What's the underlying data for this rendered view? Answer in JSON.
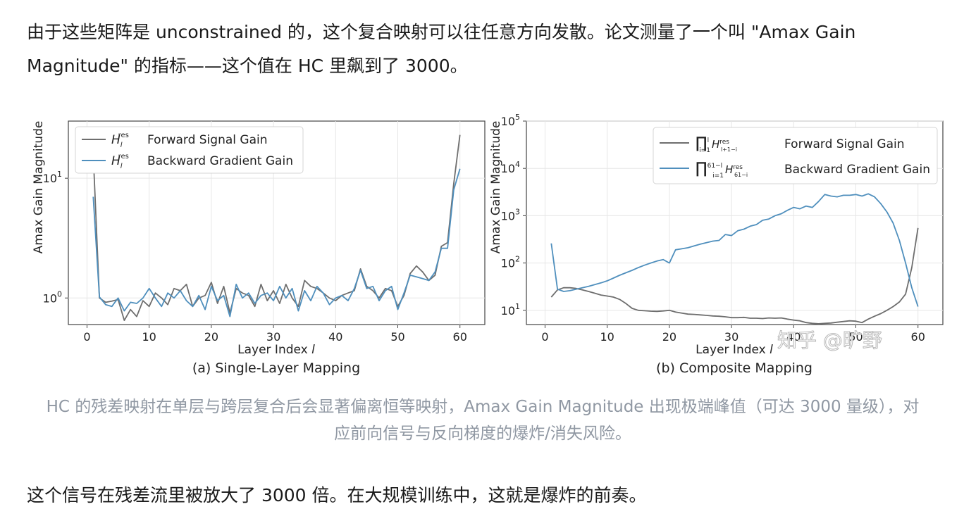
{
  "paragraphs": {
    "p1": "由于这些矩阵是 unconstrained 的，这个复合映射可以往任意方向发散。论文测量了一个叫 \"Amax Gain Magnitude\" 的指标——这个值在 HC 里飙到了 3000。",
    "caption": "HC 的残差映射在单层与跨层复合后会显著偏离恒等映射，Amax Gain Magnitude 出现极端峰值（可达 3000 量级），对应前向信号与反向梯度的爆炸/消失风险。",
    "p3": "这个信号在残差流里被放大了 3000 倍。在大规模训练中，这就是爆炸的前奏。"
  },
  "watermark": "知乎 @旷野",
  "colors": {
    "forward": "#6e6e6e",
    "backward": "#4f8fbd"
  },
  "chart_data": [
    {
      "type": "line",
      "title": "(a) Single-Layer Mapping",
      "xlabel": "Layer Index l",
      "ylabel": "Amax Gain Magnitude",
      "yscale": "log",
      "xlim": [
        -3,
        64
      ],
      "ylim": [
        0.6,
        30
      ],
      "xticks": [
        0,
        10,
        20,
        30,
        40,
        50,
        60
      ],
      "yticks": [
        {
          "value": 1,
          "base": "10",
          "exp": "0"
        },
        {
          "value": 10,
          "base": "10",
          "exp": "1"
        }
      ],
      "legend": "top-left",
      "series": [
        {
          "name": "Forward Signal Gain",
          "symbol": "H",
          "sub": "l",
          "sup": "res",
          "x": [
            1,
            2,
            3,
            4,
            5,
            6,
            7,
            8,
            9,
            10,
            11,
            12,
            13,
            14,
            15,
            16,
            17,
            18,
            19,
            20,
            21,
            22,
            23,
            24,
            25,
            26,
            27,
            28,
            29,
            30,
            31,
            32,
            33,
            34,
            35,
            36,
            37,
            38,
            39,
            40,
            41,
            42,
            43,
            44,
            45,
            46,
            47,
            48,
            49,
            50,
            51,
            52,
            53,
            54,
            55,
            56,
            57,
            58,
            59,
            60
          ],
          "values": [
            16,
            1.0,
            0.92,
            0.94,
            0.97,
            0.65,
            0.8,
            0.7,
            0.95,
            0.85,
            1.1,
            1.0,
            0.88,
            1.2,
            1.15,
            1.3,
            0.85,
            1.0,
            1.05,
            1.35,
            0.9,
            1.25,
            0.75,
            1.2,
            1.1,
            1.05,
            0.85,
            1.3,
            0.95,
            1.15,
            0.9,
            1.3,
            1.0,
            0.85,
            1.4,
            1.25,
            1.2,
            1.1,
            1.0,
            0.95,
            1.05,
            1.1,
            1.15,
            1.75,
            1.25,
            1.15,
            1.0,
            1.2,
            1.15,
            0.85,
            1.05,
            1.6,
            1.85,
            1.65,
            1.4,
            1.55,
            2.7,
            2.9,
            9,
            23
          ]
        },
        {
          "name": "Backward Gradient Gain",
          "symbol": "H",
          "sub": "l",
          "sup": "res",
          "x": [
            1,
            2,
            3,
            4,
            5,
            6,
            7,
            8,
            9,
            10,
            11,
            12,
            13,
            14,
            15,
            16,
            17,
            18,
            19,
            20,
            21,
            22,
            23,
            24,
            25,
            26,
            27,
            28,
            29,
            30,
            31,
            32,
            33,
            34,
            35,
            36,
            37,
            38,
            39,
            40,
            41,
            42,
            43,
            44,
            45,
            46,
            47,
            48,
            49,
            50,
            51,
            52,
            53,
            54,
            55,
            56,
            57,
            58,
            59,
            60
          ],
          "values": [
            7,
            1.02,
            0.88,
            0.85,
            1.0,
            0.78,
            0.92,
            0.9,
            1.0,
            1.2,
            1.0,
            0.85,
            1.1,
            1.0,
            1.15,
            0.95,
            0.85,
            1.05,
            0.8,
            1.25,
            0.95,
            1.05,
            0.7,
            1.3,
            1.0,
            1.1,
            0.9,
            1.05,
            1.1,
            0.95,
            1.25,
            1.0,
            1.2,
            0.78,
            1.15,
            0.95,
            1.25,
            1.1,
            0.88,
            1.0,
            1.05,
            0.95,
            1.2,
            1.7,
            1.2,
            1.25,
            0.95,
            1.15,
            1.25,
            0.8,
            1.1,
            1.55,
            1.5,
            1.45,
            1.4,
            1.65,
            2.6,
            2.6,
            8,
            12
          ]
        }
      ]
    },
    {
      "type": "line",
      "title": "(b) Composite Mapping",
      "xlabel": "Layer Index l",
      "ylabel": "Amax Gain Magnitude",
      "yscale": "log",
      "xlim": [
        -3,
        64
      ],
      "ylim": [
        5,
        100000
      ],
      "xticks": [
        0,
        10,
        20,
        30,
        40,
        50,
        60
      ],
      "yticks": [
        {
          "value": 10,
          "base": "10",
          "exp": "1"
        },
        {
          "value": 100,
          "base": "10",
          "exp": "2"
        },
        {
          "value": 1000,
          "base": "10",
          "exp": "3"
        },
        {
          "value": 10000,
          "base": "10",
          "exp": "4"
        },
        {
          "value": 100000,
          "base": "10",
          "exp": "5"
        }
      ],
      "legend": "top-right",
      "series": [
        {
          "name": "Forward Signal Gain",
          "prod_sub": "i=1",
          "prod_sup": "l",
          "h_sub": "l+1−i",
          "h_sup": "res",
          "x": [
            1,
            2,
            3,
            4,
            5,
            6,
            7,
            8,
            9,
            10,
            11,
            12,
            13,
            14,
            15,
            16,
            17,
            18,
            19,
            20,
            21,
            22,
            23,
            24,
            25,
            26,
            27,
            28,
            29,
            30,
            31,
            32,
            33,
            34,
            35,
            36,
            37,
            38,
            39,
            40,
            41,
            42,
            43,
            44,
            45,
            46,
            47,
            48,
            49,
            50,
            51,
            52,
            53,
            54,
            55,
            56,
            57,
            58,
            59,
            60
          ],
          "values": [
            19,
            27,
            30,
            30,
            29,
            27,
            25,
            23,
            21,
            20,
            19,
            17,
            14,
            11,
            10,
            9.8,
            9.6,
            9.5,
            9.7,
            10,
            9.2,
            8.7,
            8.3,
            8.2,
            8.0,
            7.8,
            7.6,
            7.5,
            7.3,
            7.0,
            7.0,
            7.1,
            6.8,
            6.8,
            6.7,
            6.9,
            6.8,
            6.9,
            6.5,
            6.2,
            6.0,
            5.5,
            5.3,
            5.2,
            5.3,
            5.4,
            5.6,
            5.8,
            6.0,
            5.9,
            5.5,
            6.5,
            7.5,
            8.5,
            10,
            12,
            15,
            22,
            80,
            550
          ]
        },
        {
          "name": "Backward Gradient Gain",
          "prod_sub": "i=1",
          "prod_sup": "61−l",
          "h_sub": "61−i",
          "h_sup": "res",
          "x": [
            1,
            2,
            3,
            4,
            5,
            6,
            7,
            8,
            9,
            10,
            11,
            12,
            13,
            14,
            15,
            16,
            17,
            18,
            19,
            20,
            21,
            22,
            23,
            24,
            25,
            26,
            27,
            28,
            29,
            30,
            31,
            32,
            33,
            34,
            35,
            36,
            37,
            38,
            39,
            40,
            41,
            42,
            43,
            44,
            45,
            46,
            47,
            48,
            49,
            50,
            51,
            52,
            53,
            54,
            55,
            56,
            57,
            58,
            59,
            60
          ],
          "values": [
            260,
            28,
            25,
            26,
            28,
            30,
            32,
            35,
            38,
            42,
            48,
            55,
            62,
            70,
            80,
            90,
            100,
            110,
            118,
            100,
            190,
            200,
            210,
            230,
            250,
            270,
            290,
            300,
            400,
            380,
            480,
            520,
            600,
            650,
            800,
            850,
            1000,
            1100,
            1300,
            1500,
            1400,
            1600,
            1500,
            2000,
            2800,
            2600,
            2500,
            2700,
            2700,
            2800,
            2600,
            2900,
            2500,
            1800,
            1200,
            700,
            300,
            100,
            30,
            12
          ]
        }
      ]
    }
  ]
}
